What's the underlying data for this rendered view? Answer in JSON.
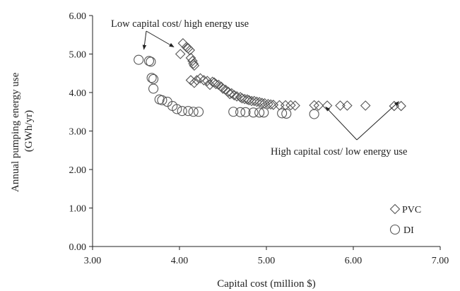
{
  "chart_data": {
    "type": "scatter",
    "title": "",
    "xlabel": "Capital cost (million $)",
    "ylabel": [
      "Annual pumping energy use",
      "(GWh/yr)"
    ],
    "xlim": [
      3.0,
      7.0
    ],
    "ylim": [
      0.0,
      6.0
    ],
    "xticks": [
      "3.00",
      "4.00",
      "5.00",
      "6.00",
      "7.00"
    ],
    "yticks": [
      "0.00",
      "1.00",
      "2.00",
      "3.00",
      "4.00",
      "5.00",
      "6.00"
    ],
    "grid": false,
    "legend_placement": "bottom-right",
    "series": [
      {
        "name": "PVC",
        "marker": "diamond",
        "color": "#555555",
        "points": [
          [
            4.01,
            5.0
          ],
          [
            4.04,
            5.28
          ],
          [
            4.08,
            5.18
          ],
          [
            4.1,
            5.15
          ],
          [
            4.12,
            5.1
          ],
          [
            4.13,
            4.9
          ],
          [
            4.15,
            4.82
          ],
          [
            4.16,
            4.75
          ],
          [
            4.17,
            4.7
          ],
          [
            4.13,
            4.32
          ],
          [
            4.17,
            4.25
          ],
          [
            4.2,
            4.32
          ],
          [
            4.24,
            4.37
          ],
          [
            4.28,
            4.32
          ],
          [
            4.32,
            4.3
          ],
          [
            4.35,
            4.2
          ],
          [
            4.38,
            4.28
          ],
          [
            4.4,
            4.26
          ],
          [
            4.42,
            4.22
          ],
          [
            4.45,
            4.2
          ],
          [
            4.48,
            4.15
          ],
          [
            4.5,
            4.1
          ],
          [
            4.53,
            4.07
          ],
          [
            4.56,
            4.02
          ],
          [
            4.58,
            3.96
          ],
          [
            4.6,
            3.98
          ],
          [
            4.63,
            3.93
          ],
          [
            4.66,
            3.9
          ],
          [
            4.7,
            3.88
          ],
          [
            4.72,
            3.85
          ],
          [
            4.75,
            3.83
          ],
          [
            4.78,
            3.82
          ],
          [
            4.8,
            3.8
          ],
          [
            4.83,
            3.78
          ],
          [
            4.86,
            3.78
          ],
          [
            4.89,
            3.76
          ],
          [
            4.92,
            3.75
          ],
          [
            4.95,
            3.73
          ],
          [
            4.98,
            3.72
          ],
          [
            5.02,
            3.7
          ],
          [
            5.05,
            3.69
          ],
          [
            5.08,
            3.68
          ],
          [
            5.15,
            3.67
          ],
          [
            5.22,
            3.67
          ],
          [
            5.28,
            3.67
          ],
          [
            5.33,
            3.66
          ],
          [
            5.55,
            3.67
          ],
          [
            5.6,
            3.66
          ],
          [
            5.7,
            3.66
          ],
          [
            5.85,
            3.66
          ],
          [
            5.93,
            3.66
          ],
          [
            6.14,
            3.66
          ],
          [
            6.47,
            3.65
          ],
          [
            6.55,
            3.65
          ]
        ]
      },
      {
        "name": "DI",
        "marker": "circle",
        "color": "#555555",
        "points": [
          [
            3.53,
            4.85
          ],
          [
            3.65,
            4.82
          ],
          [
            3.67,
            4.8
          ],
          [
            3.68,
            4.38
          ],
          [
            3.7,
            4.35
          ],
          [
            3.7,
            4.1
          ],
          [
            3.77,
            3.82
          ],
          [
            3.8,
            3.8
          ],
          [
            3.86,
            3.76
          ],
          [
            3.92,
            3.65
          ],
          [
            3.97,
            3.57
          ],
          [
            4.03,
            3.52
          ],
          [
            4.1,
            3.52
          ],
          [
            4.16,
            3.5
          ],
          [
            4.22,
            3.5
          ],
          [
            4.62,
            3.5
          ],
          [
            4.7,
            3.49
          ],
          [
            4.76,
            3.49
          ],
          [
            4.85,
            3.48
          ],
          [
            4.92,
            3.48
          ],
          [
            4.97,
            3.48
          ],
          [
            5.18,
            3.46
          ],
          [
            5.23,
            3.45
          ],
          [
            5.55,
            3.44
          ]
        ]
      }
    ],
    "annotations": [
      {
        "text": "Low capital cost/ high energy use",
        "points_to": [
          [
            3.55,
            4.9
          ],
          [
            4.0,
            5.0
          ]
        ]
      },
      {
        "text": "High capital cost/ low energy use",
        "points_to": [
          [
            5.6,
            3.48
          ],
          [
            6.5,
            3.6
          ]
        ]
      }
    ]
  }
}
